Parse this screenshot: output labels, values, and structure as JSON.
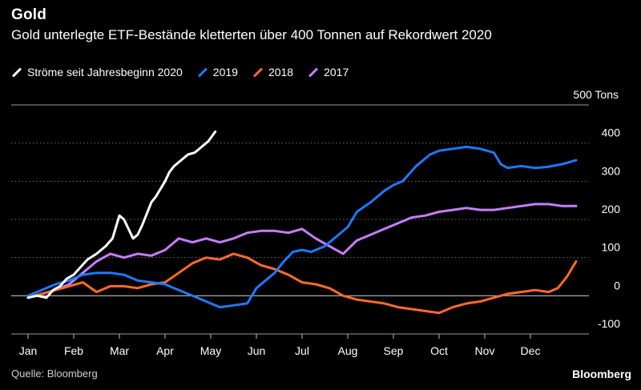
{
  "header": {
    "title": "Gold",
    "subtitle": "Gold unterlegte ETF-Bestände kletterten über 400 Tonnen auf Rekordwert 2020"
  },
  "footer": {
    "source": "Quelle: Bloomberg",
    "brand": "Bloomberg"
  },
  "chart_data": {
    "type": "line",
    "title": "Gold",
    "subtitle": "Gold unterlegte ETF-Bestände kletterten über 400 Tonnen auf Rekordwert 2020",
    "ylabel": "Tons",
    "ylim": [
      -100,
      500
    ],
    "yticks": [
      {
        "value": 500,
        "label": "500 Tons"
      },
      {
        "value": 400,
        "label": "400"
      },
      {
        "value": 300,
        "label": "300"
      },
      {
        "value": 200,
        "label": "200"
      },
      {
        "value": 100,
        "label": "100"
      },
      {
        "value": 0,
        "label": "0"
      },
      {
        "value": -100,
        "label": "-100"
      }
    ],
    "xlim": [
      0,
      12
    ],
    "xticks": [
      {
        "value": 0,
        "label": "Jan"
      },
      {
        "value": 1,
        "label": "Feb"
      },
      {
        "value": 2,
        "label": "Mar"
      },
      {
        "value": 3,
        "label": "Apr"
      },
      {
        "value": 4,
        "label": "May"
      },
      {
        "value": 5,
        "label": "Jun"
      },
      {
        "value": 6,
        "label": "Jul"
      },
      {
        "value": 7,
        "label": "Aug"
      },
      {
        "value": 8,
        "label": "Sep"
      },
      {
        "value": 9,
        "label": "Oct"
      },
      {
        "value": 10,
        "label": "Nov"
      },
      {
        "value": 11,
        "label": "Dec"
      }
    ],
    "grid": true,
    "legend_position": "top-left",
    "series": [
      {
        "name": "Ströme seit Jahresbeginn 2020",
        "color": "#ffffff",
        "x": [
          0,
          0.2,
          0.4,
          0.55,
          0.7,
          0.85,
          1.0,
          1.15,
          1.3,
          1.5,
          1.7,
          1.85,
          2.0,
          2.1,
          2.2,
          2.3,
          2.4,
          2.5,
          2.6,
          2.7,
          2.8,
          2.9,
          3.0,
          3.1,
          3.2,
          3.35,
          3.5,
          3.65,
          3.8,
          3.95,
          4.1
        ],
        "values": [
          -5,
          0,
          -5,
          15,
          25,
          45,
          55,
          75,
          95,
          110,
          130,
          150,
          210,
          200,
          175,
          150,
          160,
          185,
          215,
          245,
          260,
          280,
          300,
          325,
          340,
          355,
          370,
          375,
          390,
          405,
          430
        ]
      },
      {
        "name": "2019",
        "color": "#1f78ff",
        "x": [
          0,
          0.3,
          0.6,
          0.9,
          1.2,
          1.5,
          1.8,
          2.1,
          2.4,
          2.7,
          3.0,
          3.3,
          3.6,
          3.9,
          4.2,
          4.5,
          4.8,
          5.0,
          5.2,
          5.4,
          5.6,
          5.8,
          6.0,
          6.2,
          6.5,
          6.8,
          7.0,
          7.2,
          7.5,
          7.8,
          8.0,
          8.2,
          8.5,
          8.8,
          9.0,
          9.3,
          9.6,
          9.9,
          10.2,
          10.35,
          10.5,
          10.8,
          11.1,
          11.4,
          11.7,
          12.0
        ],
        "values": [
          0,
          15,
          30,
          40,
          55,
          60,
          60,
          55,
          40,
          35,
          30,
          15,
          0,
          -15,
          -30,
          -25,
          -20,
          20,
          40,
          60,
          90,
          115,
          120,
          115,
          130,
          160,
          180,
          220,
          245,
          275,
          290,
          300,
          340,
          370,
          380,
          385,
          390,
          385,
          375,
          345,
          335,
          340,
          335,
          338,
          345,
          355
        ]
      },
      {
        "name": "2018",
        "color": "#ff6a2b",
        "x": [
          0,
          0.3,
          0.6,
          0.9,
          1.2,
          1.5,
          1.8,
          2.1,
          2.4,
          2.7,
          3.0,
          3.3,
          3.6,
          3.9,
          4.2,
          4.5,
          4.8,
          5.1,
          5.4,
          5.7,
          6.0,
          6.3,
          6.6,
          6.9,
          7.2,
          7.5,
          7.8,
          8.1,
          8.4,
          8.7,
          9.0,
          9.3,
          9.6,
          9.9,
          10.2,
          10.5,
          10.8,
          11.1,
          11.4,
          11.6,
          11.8,
          12.0
        ],
        "values": [
          -5,
          5,
          15,
          25,
          35,
          10,
          25,
          25,
          20,
          30,
          35,
          60,
          85,
          100,
          95,
          110,
          100,
          80,
          70,
          55,
          35,
          30,
          20,
          0,
          -10,
          -15,
          -20,
          -30,
          -35,
          -40,
          -45,
          -30,
          -20,
          -15,
          -5,
          5,
          10,
          15,
          10,
          20,
          50,
          90
        ]
      },
      {
        "name": "2017",
        "color": "#c77dff",
        "x": [
          0,
          0.3,
          0.6,
          0.9,
          1.2,
          1.5,
          1.8,
          2.1,
          2.4,
          2.7,
          3.0,
          3.3,
          3.6,
          3.9,
          4.2,
          4.5,
          4.8,
          5.1,
          5.4,
          5.7,
          6.0,
          6.3,
          6.6,
          6.9,
          7.2,
          7.5,
          7.8,
          8.1,
          8.4,
          8.7,
          9.0,
          9.3,
          9.6,
          9.9,
          10.2,
          10.5,
          10.8,
          11.1,
          11.4,
          11.7,
          12.0
        ],
        "values": [
          -5,
          5,
          15,
          30,
          60,
          90,
          110,
          100,
          110,
          105,
          120,
          150,
          140,
          150,
          140,
          150,
          165,
          170,
          170,
          165,
          175,
          150,
          130,
          110,
          145,
          160,
          175,
          190,
          205,
          210,
          220,
          225,
          230,
          225,
          225,
          230,
          235,
          240,
          240,
          235,
          235
        ]
      }
    ]
  }
}
